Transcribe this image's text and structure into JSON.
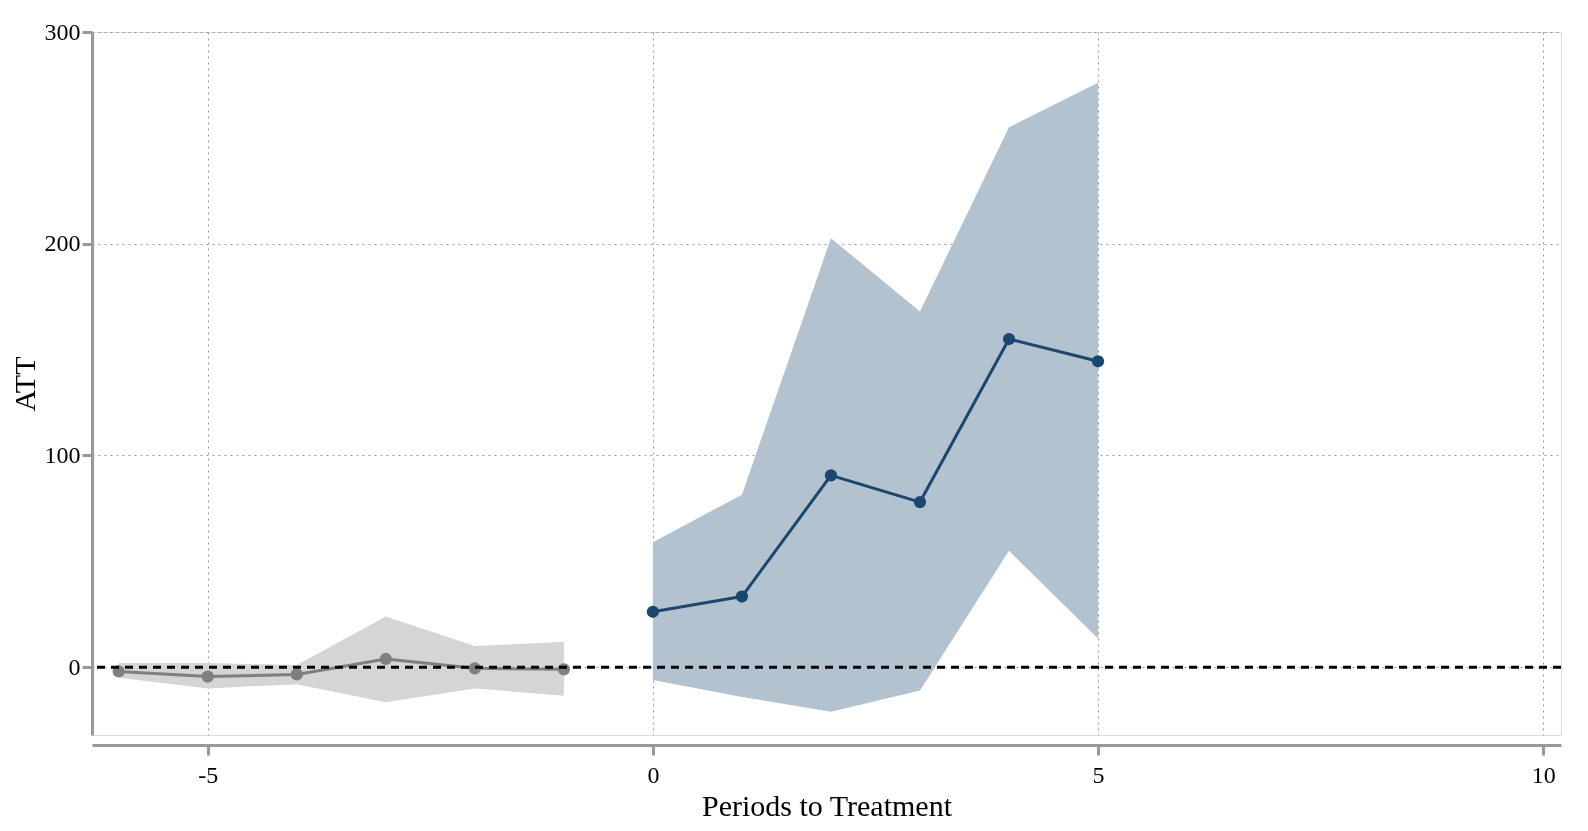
{
  "chart_data": {
    "type": "line",
    "xlabel": "Periods to Treatment",
    "ylabel": "ATT",
    "xlim": [
      -6.3,
      10.2
    ],
    "ylim": [
      -32,
      300
    ],
    "xticks": [
      -5,
      0,
      5,
      10
    ],
    "yticks": [
      0,
      100,
      200,
      300
    ],
    "grid": true,
    "marker": "circle",
    "line_style": "solid",
    "series": [
      {
        "color": "#7f7f7f",
        "x": [
          -6,
          -5,
          -4,
          -3,
          -2,
          -1
        ],
        "values": [
          -2,
          -4.4,
          -3.4,
          3.9,
          -0.5,
          -1
        ],
        "lower": [
          -5,
          -10,
          -8,
          -16.5,
          -10,
          -13.5
        ],
        "upper": [
          2,
          2,
          1,
          24,
          10,
          12
        ]
      },
      {
        "color": "#1a476f",
        "x": [
          0,
          1,
          2,
          3,
          4,
          5
        ],
        "values": [
          26.2,
          33.4,
          90.6,
          78,
          155,
          144.5
        ],
        "lower": [
          -6,
          -14,
          -21,
          -11,
          55,
          13.6
        ],
        "upper": [
          59,
          81.5,
          202.6,
          168,
          255,
          276
        ]
      }
    ],
    "ref_lines": [
      {
        "axis": "y",
        "value": 0,
        "color": "#000000",
        "line_style": "dashed"
      }
    ]
  }
}
